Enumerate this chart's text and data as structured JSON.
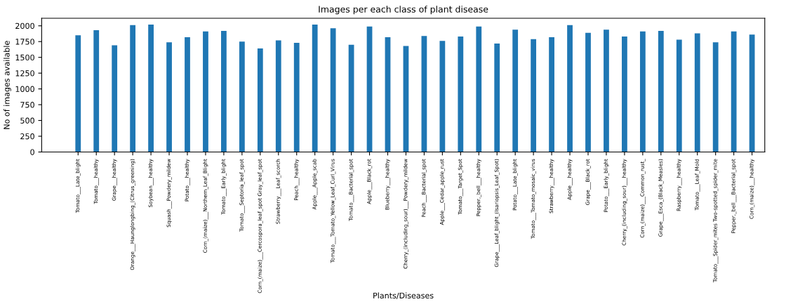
{
  "chart_data": {
    "type": "bar",
    "title": "Images per each class of plant disease",
    "xlabel": "Plants/Diseases",
    "ylabel": "No of images available",
    "categories": [
      "Tomato___Late_blight",
      "Tomato___healthy",
      "Grape___healthy",
      "Orange___Haunglongbing_(Citrus_greening)",
      "Soybean___healthy",
      "Squash___Powdery_mildew",
      "Potato___healthy",
      "Corn_(maize)___Northern_Leaf_Blight",
      "Tomato___Early_blight",
      "Tomato___Septoria_leaf_spot",
      "Corn_(maize)___Cercospora_leaf_spot Gray_leaf_spot",
      "Strawberry___Leaf_scorch",
      "Peach___healthy",
      "Apple___Apple_scab",
      "Tomato___Tomato_Yellow_Leaf_Curl_Virus",
      "Tomato___Bacterial_spot",
      "Apple___Black_rot",
      "Blueberry___healthy",
      "Cherry_(including_sour)___Powdery_mildew",
      "Peach___Bacterial_spot",
      "Apple___Cedar_apple_rust",
      "Tomato___Target_Spot",
      "Pepper,_bell___healthy",
      "Grape___Leaf_blight_(Isariopsis_Leaf_Spot)",
      "Potato___Late_blight",
      "Tomato___Tomato_mosaic_virus",
      "Strawberry___healthy",
      "Apple___healthy",
      "Grape___Black_rot",
      "Potato___Early_blight",
      "Cherry_(including_sour)___healthy",
      "Corn_(maize)___Common_rust_",
      "Grape___Esca_(Black_Measles)",
      "Raspberry___healthy",
      "Tomato___Leaf_Mold",
      "Tomato___Spider_mites Two-spotted_spider_mite",
      "Pepper,_bell___Bacterial_spot",
      "Corn_(maize)___healthy"
    ],
    "values": [
      1850,
      1930,
      1690,
      2010,
      2020,
      1740,
      1820,
      1910,
      1920,
      1750,
      1640,
      1770,
      1730,
      2020,
      1960,
      1700,
      1990,
      1820,
      1680,
      1840,
      1760,
      1830,
      1990,
      1720,
      1940,
      1790,
      1820,
      2010,
      1890,
      1940,
      1830,
      1910,
      1920,
      1780,
      1880,
      1740,
      1910,
      1860
    ],
    "color": "#1f77b4",
    "ylim": [
      0,
      2120
    ],
    "yticks": [
      0,
      250,
      500,
      750,
      1000,
      1250,
      1500,
      1750,
      2000
    ],
    "grid": false,
    "legend": false
  }
}
